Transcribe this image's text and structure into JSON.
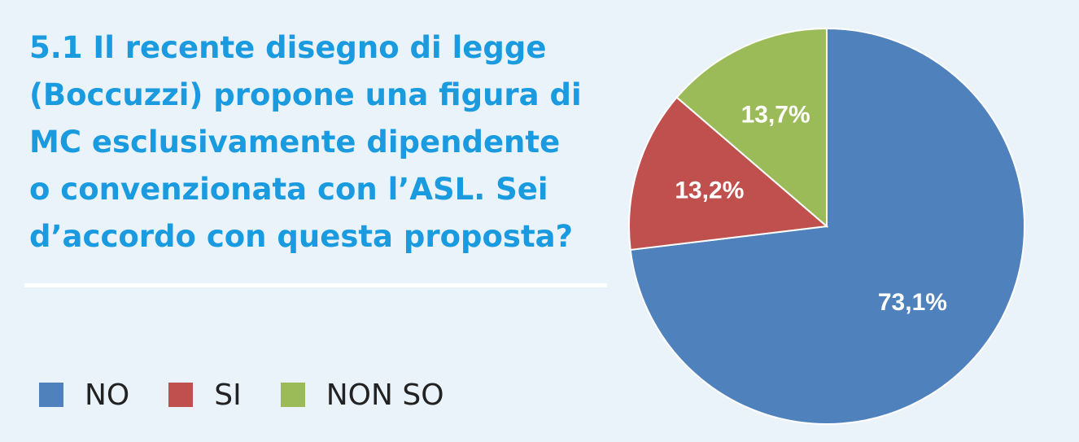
{
  "title_lines": [
    "5.1 Il recente disegno di legge",
    "(Boccuzzi) propone una figura di",
    "MC esclusivamente dipendente",
    "o convenzionata con l’ASL. Sei",
    "d’accordo con questa proposta?"
  ],
  "colors": {
    "background": "#eaf2fa",
    "title": "#1a9be0",
    "slice_stroke": "#ffffff"
  },
  "chart_data": {
    "type": "pie",
    "categories": [
      "NO",
      "SI",
      "NON SO"
    ],
    "values": [
      73.1,
      13.2,
      13.7
    ],
    "labels": [
      "73,1%",
      "13,2%",
      "13,7%"
    ],
    "colors": [
      "#4f81bd",
      "#c0504d",
      "#9bbb59"
    ],
    "start_angle": "12 o'clock",
    "direction": "clockwise",
    "legend_position": "bottom-left"
  }
}
